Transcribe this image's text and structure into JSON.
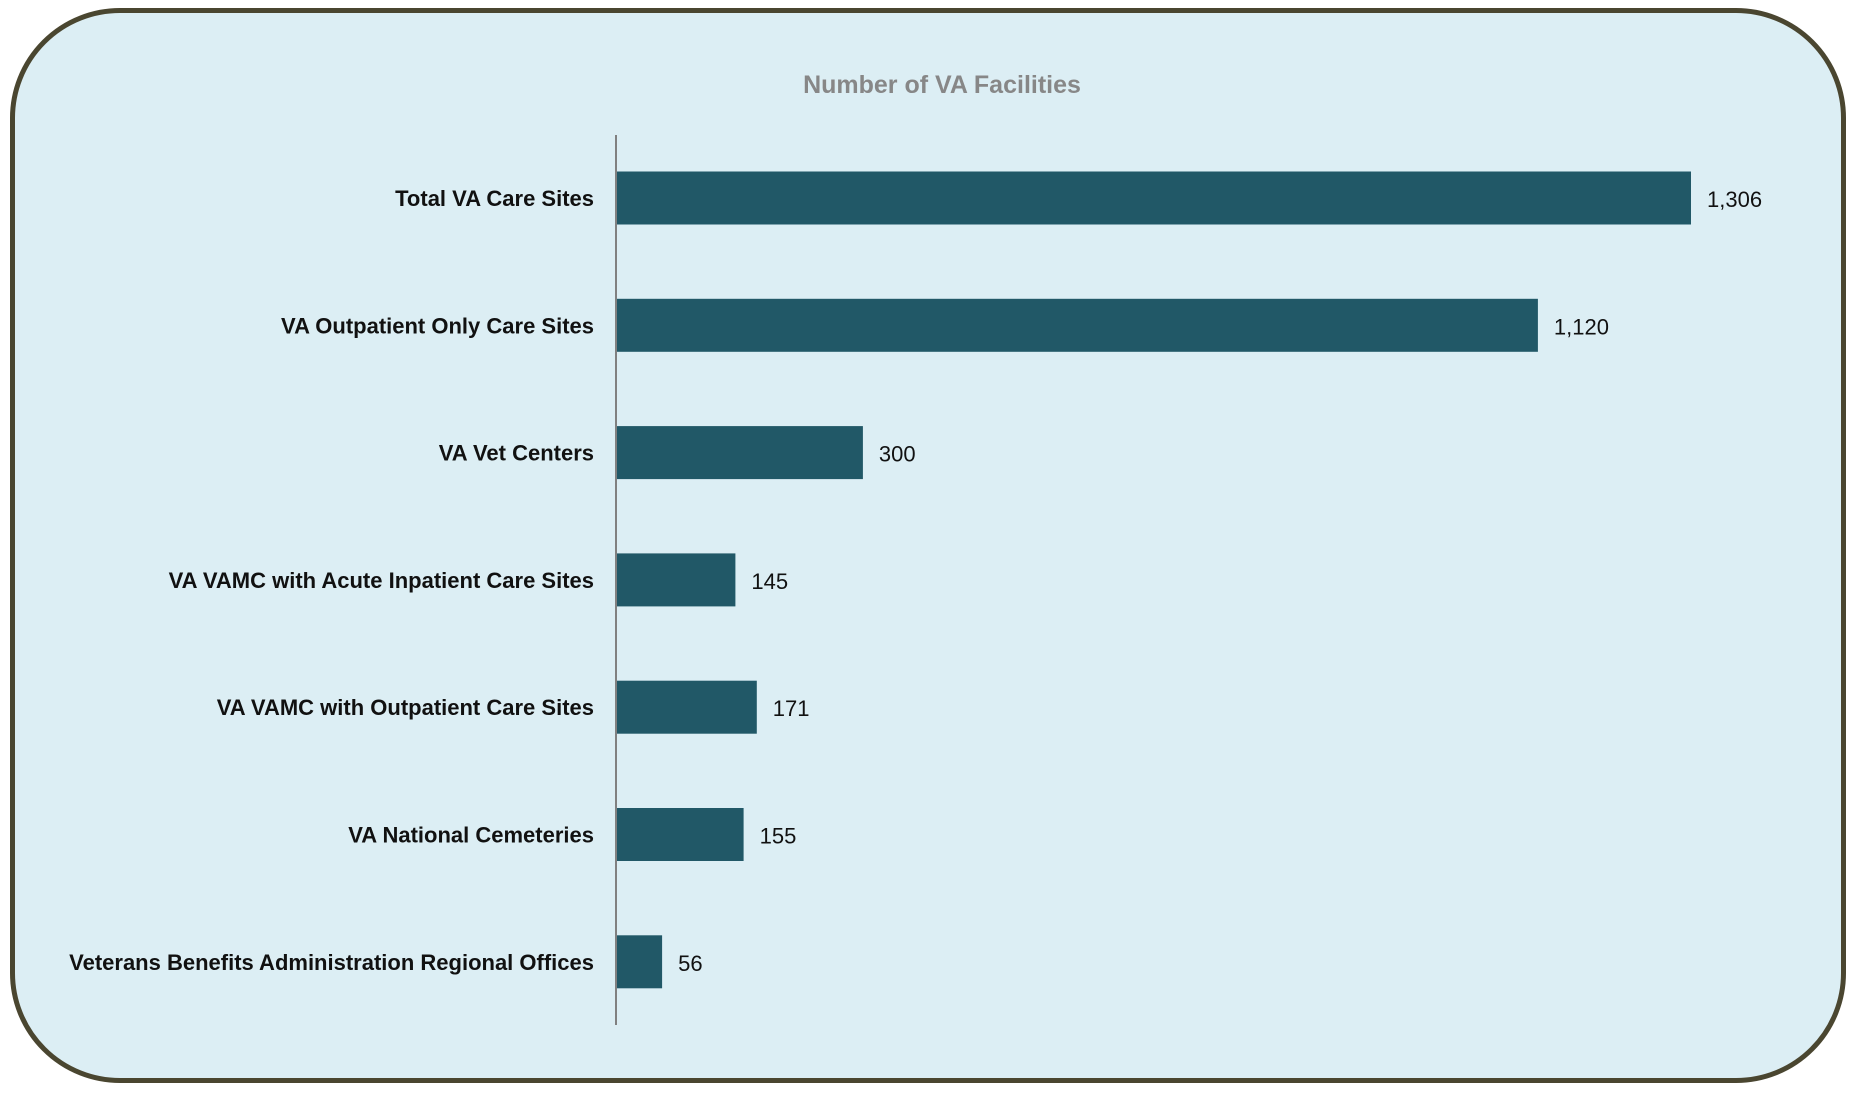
{
  "chart_data": {
    "type": "bar",
    "orientation": "horizontal",
    "title": "Number of VA Facilities",
    "categories": [
      "Total VA Care Sites",
      "VA Outpatient Only Care Sites",
      "VA Vet Centers",
      "VA VAMC with Acute Inpatient Care Sites",
      "VA VAMC with Outpatient Care Sites",
      "VA National Cemeteries",
      "Veterans Benefits Administration Regional Offices"
    ],
    "values": [
      1306,
      1120,
      300,
      145,
      171,
      155,
      56
    ],
    "data_labels": [
      "1,306",
      "1,120",
      "300",
      "145",
      "171",
      "155",
      "56"
    ],
    "xlim": [
      0,
      1400
    ],
    "grid": false,
    "legend": "none",
    "colors": {
      "bar": "#215867",
      "background": "#dceef4",
      "border": "#4a4630",
      "axis": "#808080",
      "title": "#878787"
    }
  }
}
